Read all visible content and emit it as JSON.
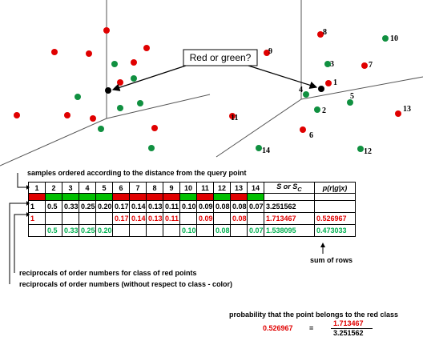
{
  "query_label": "Red or green?",
  "left_points": [
    {
      "color": "red"
    },
    {
      "color": "red"
    },
    {
      "color": "red"
    },
    {
      "color": "red"
    },
    {
      "color": "green"
    },
    {
      "color": "red"
    },
    {
      "color": "green"
    },
    {
      "color": "red"
    },
    {
      "color": "green"
    },
    {
      "color": "green"
    },
    {
      "color": "red"
    },
    {
      "color": "green"
    },
    {
      "color": "red"
    },
    {
      "color": "red"
    },
    {
      "color": "red"
    },
    {
      "color": "green"
    },
    {
      "color": "green"
    },
    {
      "color": "red"
    }
  ],
  "right_points": [
    {
      "label": "1",
      "color": "red"
    },
    {
      "label": "2",
      "color": "green"
    },
    {
      "label": "3",
      "color": "green"
    },
    {
      "label": "4",
      "color": "green"
    },
    {
      "label": "5",
      "color": "green"
    },
    {
      "label": "6",
      "color": "red"
    },
    {
      "label": "7",
      "color": "red"
    },
    {
      "label": "8",
      "color": "red"
    },
    {
      "label": "9",
      "color": "red"
    },
    {
      "label": "10",
      "color": "green"
    },
    {
      "label": "11",
      "color": "red"
    },
    {
      "label": "12",
      "color": "green"
    },
    {
      "label": "13",
      "color": "red"
    },
    {
      "label": "14",
      "color": "green"
    }
  ],
  "left_extra_label": "11",
  "colors": {
    "red": "#e00000",
    "green": "#109040",
    "black": "#000000"
  },
  "annotations": {
    "ordered": "samples ordered according to the distance from the query point",
    "red_recip": "reciprocals of order numbers for class of red points",
    "all_recip": "reciprocals of order numbers (without respect to class - color)",
    "sum_rows": "sum of rows",
    "probability": "probability that the point belongs to the red class"
  },
  "table": {
    "headers": [
      "1",
      "2",
      "3",
      "4",
      "5",
      "6",
      "7",
      "8",
      "9",
      "10",
      "11",
      "12",
      "13",
      "14"
    ],
    "s_header": "S or S",
    "s_sub": "C",
    "p_header": "p(r|g|x)",
    "colors": [
      "red",
      "green",
      "green",
      "green",
      "green",
      "red",
      "red",
      "red",
      "red",
      "green",
      "red",
      "green",
      "red",
      "green"
    ],
    "row_all": [
      "1",
      "0.5",
      "0.33",
      "0.25",
      "0.20",
      "0.17",
      "0.14",
      "0.13",
      "0.11",
      "0.10",
      "0.09",
      "0.08",
      "0.08",
      "0.07"
    ],
    "row_all_sum": "3.251562",
    "row_red": [
      "1",
      "",
      "",
      "",
      "",
      "0.17",
      "0.14",
      "0.13",
      "0.11",
      "",
      "0.09",
      "",
      "0.08",
      ""
    ],
    "row_red_sum": "1.713467",
    "row_red_p": "0.526967",
    "row_green": [
      "",
      "0.5",
      "0.33",
      "0.25",
      "0.20",
      "",
      "",
      "",
      "",
      "0.10",
      "",
      "0.08",
      "",
      "0.07"
    ],
    "row_green_sum": "1.538095",
    "row_green_p": "0.473033"
  },
  "equation": {
    "result": "0.526967",
    "eq": "=",
    "numerator": "1.713467",
    "denominator": "3.251562"
  }
}
